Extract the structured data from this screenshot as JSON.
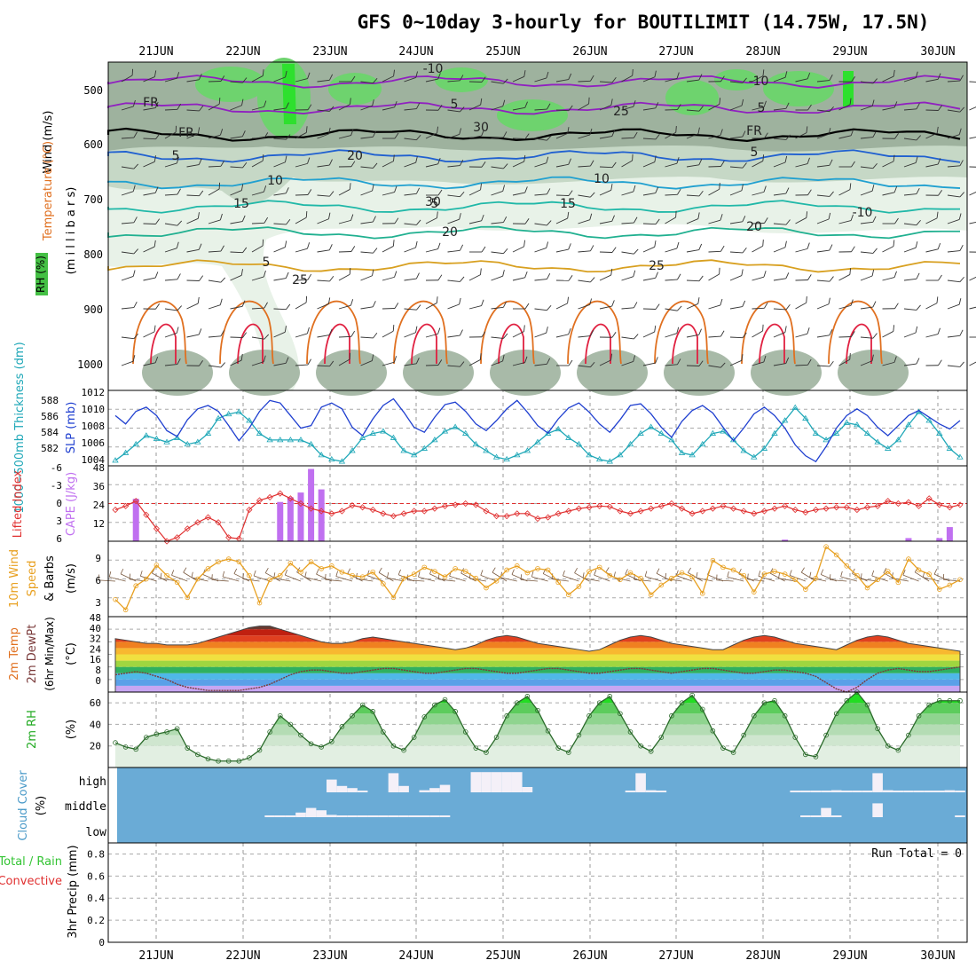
{
  "title": "GFS 0~10day 3-hourly for BOUTILIMIT (14.75W, 17.5N)",
  "date_labels": [
    "21JUN",
    "22JUN",
    "23JUN",
    "24JUN",
    "25JUN",
    "26JUN",
    "27JUN",
    "28JUN",
    "29JUN",
    "30JUN"
  ],
  "colors": {
    "rh": "#44c044",
    "temp": "#8c28c8",
    "wind": "#000000",
    "thickness": "#20a8b8",
    "slp": "#2040d0",
    "lifted": "#e03030",
    "cape": "#c070f0",
    "wind10": "#e8a020",
    "cloud_bg": "#6aabd6",
    "precip_green": "#33c433",
    "precip_red": "#e03030"
  },
  "panels": {
    "upper": {
      "label_wind": "Wind (m/s)",
      "label_temp": "Temperature (°C)",
      "label_rh": "RH (%)",
      "label_pressure": "(m i l l i b a r s)",
      "yticks": [
        "500",
        "600",
        "700",
        "800",
        "900",
        "1000"
      ],
      "contour_labels": [
        "-10",
        "5",
        "FR",
        "5",
        "10",
        "15",
        "20",
        "25",
        "30",
        "-10",
        "5",
        "FR",
        "5",
        "10",
        "15",
        "20",
        "25",
        "30",
        "-10",
        "5",
        "FR",
        "5",
        "20",
        "25"
      ]
    },
    "slp": {
      "label_left": "1000~500mb Thickness (dm)",
      "label_right": "SLP (mb)",
      "thick_ticks": [
        "588",
        "586",
        "584",
        "582"
      ],
      "slp_ticks": [
        "1012",
        "1010",
        "1008",
        "1006",
        "1004"
      ]
    },
    "li": {
      "label_left": "Lifted Index",
      "label_right": "CAPE (J/kg)",
      "li_ticks": [
        "-6",
        "-3",
        "0",
        "3",
        "6"
      ],
      "cape_ticks": [
        "48",
        "36",
        "24",
        "12"
      ]
    },
    "wind10": {
      "label_a": "10m Wind",
      "label_b": "Speed",
      "label_c": "& Barbs",
      "unit": "(m/s)",
      "yticks": [
        "9",
        "6",
        "3"
      ]
    },
    "temp2m": {
      "label_a": "2m Temp",
      "label_b": "2m DewPt",
      "label_c": "(6hr Min/Max)",
      "unit": "(°C)",
      "yticks": [
        "48",
        "40",
        "32",
        "24",
        "16",
        "8",
        "0"
      ]
    },
    "rh2m": {
      "label": "2m RH",
      "unit": "(%)",
      "yticks": [
        "60",
        "40",
        "20"
      ]
    },
    "cloud": {
      "label": "Cloud Cover",
      "unit": "(%)",
      "levels": [
        "high",
        "middle",
        "low"
      ]
    },
    "precip": {
      "label_total": "Total / Rain",
      "label_conv": "Convective",
      "label_axis": "3hr Precip (mm)",
      "run_total": "Run Total = 0",
      "yticks": [
        "0.8",
        "0.6",
        "0.4",
        "0.2",
        "0"
      ]
    }
  },
  "chart_data": [
    {
      "type": "line",
      "title": "SLP and 1000~500mb Thickness",
      "series": [
        {
          "name": "SLP (mb)",
          "values": [
            1010.0,
            1009.0,
            1010.5,
            1011.0,
            1010.0,
            1008.2,
            1007.5,
            1009.5,
            1010.8,
            1011.2,
            1010.5,
            1008.8,
            1007.0,
            1008.5,
            1010.5,
            1011.8,
            1011.5,
            1010.0,
            1008.5,
            1008.8,
            1011.0,
            1011.5,
            1010.8,
            1008.6,
            1007.6,
            1009.6,
            1011.2,
            1012.0,
            1010.4,
            1008.6,
            1008.0,
            1009.8,
            1011.3,
            1011.6,
            1010.5,
            1009.0,
            1008.2,
            1009.4,
            1010.8,
            1011.8,
            1010.4,
            1008.8,
            1007.9,
            1009.6,
            1010.9,
            1011.5,
            1010.4,
            1009.0,
            1008.0,
            1009.5,
            1011.2,
            1011.4,
            1010.2,
            1008.6,
            1007.4,
            1009.3,
            1010.6,
            1011.2,
            1010.3,
            1008.6,
            1007.0,
            1008.5,
            1010.2,
            1011.0,
            1010.0,
            1008.5,
            1006.5,
            1005.2,
            1004.5,
            1006.3,
            1008.5,
            1010.0,
            1010.8,
            1010.0,
            1008.6,
            1007.6,
            1008.8,
            1010.0,
            1010.6,
            1009.8,
            1009.0,
            1008.4,
            1009.4
          ]
        },
        {
          "name": "1000~500mb Thickness (dm)",
          "values": [
            582.5,
            583.2,
            584.0,
            584.8,
            584.5,
            584.2,
            584.6,
            584.0,
            584.2,
            585.0,
            586.4,
            586.8,
            587.0,
            586.2,
            585.0,
            584.4,
            584.4,
            584.4,
            584.4,
            584.0,
            583.0,
            582.6,
            582.4,
            583.4,
            584.6,
            585.0,
            585.2,
            584.6,
            583.4,
            583.0,
            583.6,
            584.4,
            585.2,
            585.6,
            585.0,
            584.0,
            583.4,
            582.8,
            582.6,
            583.0,
            583.4,
            584.2,
            585.0,
            585.4,
            584.6,
            584.0,
            583.0,
            582.6,
            582.4,
            583.0,
            584.0,
            585.0,
            585.6,
            585.0,
            584.4,
            583.2,
            583.0,
            584.0,
            585.0,
            585.2,
            584.4,
            583.4,
            582.8,
            583.6,
            585.0,
            586.2,
            587.4,
            586.4,
            585.0,
            584.4,
            585.0,
            586.0,
            585.8,
            585.0,
            584.2,
            583.6,
            584.4,
            585.8,
            587.0,
            586.2,
            585.0,
            583.6,
            582.8
          ]
        }
      ],
      "y2lim": [
        582,
        589
      ],
      "ylim": [
        1004,
        1013
      ]
    },
    {
      "type": "bar",
      "title": "Lifted Index and CAPE",
      "series": [
        {
          "name": "Lifted Index",
          "values": [
            1.0,
            0.4,
            -0.4,
            1.8,
            4.0,
            6.0,
            5.4,
            4.0,
            3.0,
            2.2,
            3.0,
            5.4,
            5.6,
            1.0,
            -0.5,
            -1.0,
            -1.6,
            -0.8,
            0.0,
            0.8,
            1.2,
            1.6,
            1.2,
            0.3,
            0.6,
            1.0,
            1.6,
            2.0,
            1.6,
            1.2,
            1.2,
            0.8,
            0.4,
            0.2,
            0.0,
            0.2,
            1.2,
            2.0,
            2.0,
            1.6,
            1.6,
            2.4,
            2.2,
            1.6,
            1.2,
            0.8,
            0.6,
            0.4,
            0.5,
            1.2,
            1.6,
            1.2,
            0.8,
            0.4,
            0.0,
            0.8,
            1.6,
            1.2,
            0.8,
            0.4,
            0.8,
            1.2,
            1.6,
            1.2,
            0.8,
            0.4,
            1.0,
            1.4,
            1.0,
            0.8,
            0.6,
            0.6,
            1.0,
            0.6,
            0.4,
            -0.4,
            0.0,
            -0.2,
            0.4,
            -0.8,
            0.2,
            0.6,
            0.2
          ]
        },
        {
          "name": "CAPE (J/kg)",
          "values": [
            0,
            0,
            27,
            0,
            0,
            0,
            0,
            0,
            0,
            0,
            0,
            0,
            0,
            0,
            0,
            0,
            25,
            28,
            31,
            46,
            33,
            0,
            0,
            0,
            0,
            0,
            0,
            0,
            0,
            0,
            0,
            0,
            0,
            0,
            0,
            0,
            0,
            0,
            0,
            0,
            0,
            0,
            0,
            0,
            0,
            0,
            0,
            0,
            0,
            0,
            0,
            0,
            0,
            0,
            0,
            0,
            0,
            0,
            0,
            0,
            0,
            0,
            0,
            0,
            0,
            1,
            0,
            0,
            0,
            0,
            0,
            0,
            0,
            0,
            0,
            0,
            0,
            2,
            0,
            0,
            2,
            9,
            0
          ]
        }
      ],
      "ylim": [
        6,
        -6
      ],
      "y2lim": [
        0,
        48
      ]
    },
    {
      "type": "line",
      "title": "10m Wind Speed",
      "series": [
        {
          "name": "10m Wind Speed (m/s)",
          "values": [
            2.5,
            1.0,
            4.5,
            5.5,
            7.5,
            6.0,
            5.0,
            2.8,
            5.5,
            7.0,
            8.0,
            8.4,
            8.0,
            6.0,
            2.0,
            5.4,
            6.0,
            7.8,
            6.5,
            8.0,
            7.0,
            7.4,
            6.5,
            6.0,
            5.8,
            6.5,
            4.8,
            2.8,
            5.6,
            6.2,
            7.2,
            6.6,
            5.8,
            7.0,
            6.6,
            5.6,
            4.2,
            5.2,
            6.8,
            7.4,
            6.4,
            7.0,
            6.8,
            5.0,
            3.2,
            4.4,
            6.6,
            7.2,
            6.0,
            5.4,
            6.4,
            5.6,
            3.2,
            4.6,
            5.6,
            6.4,
            5.8,
            3.4,
            8.2,
            7.2,
            6.8,
            6.0,
            3.6,
            6.2,
            6.6,
            6.2,
            5.4,
            4.0,
            5.6,
            10.2,
            9.0,
            7.4,
            6.0,
            4.2,
            5.4,
            6.6,
            5.0,
            8.4,
            6.8,
            6.2,
            4.0,
            4.6,
            5.4
          ]
        }
      ],
      "ylim": [
        0,
        11
      ]
    },
    {
      "type": "line",
      "title": "2m Temp and 2m DewPt",
      "series": [
        {
          "name": "2m Temp (°C)",
          "values": [
            34,
            33,
            32,
            31,
            31,
            30,
            30,
            30,
            31,
            33,
            35,
            37,
            39,
            41,
            42,
            42,
            40,
            38,
            36,
            34,
            32,
            31,
            31,
            32,
            34,
            35,
            34,
            33,
            32,
            31,
            30,
            29,
            28,
            27,
            28,
            30,
            33,
            35,
            36,
            35,
            33,
            31,
            30,
            29,
            28,
            27,
            26,
            27,
            30,
            33,
            35,
            36,
            35,
            33,
            31,
            30,
            29,
            28,
            27,
            27,
            30,
            33,
            35,
            36,
            35,
            33,
            31,
            30,
            29,
            28,
            27,
            30,
            33,
            35,
            36,
            35,
            33,
            31,
            30,
            29,
            28,
            27,
            26
          ]
        },
        {
          "name": "2m DewPt (°C)",
          "values": [
            11,
            12,
            13,
            12,
            10,
            8,
            5,
            3,
            2,
            1,
            1,
            1,
            1,
            2,
            3,
            5,
            8,
            11,
            13,
            14,
            14,
            13,
            12,
            12,
            13,
            14,
            15,
            15,
            14,
            13,
            12,
            12,
            13,
            14,
            15,
            15,
            14,
            13,
            12,
            12,
            13,
            14,
            15,
            15,
            14,
            13,
            12,
            12,
            13,
            14,
            15,
            15,
            14,
            13,
            12,
            13,
            14,
            15,
            15,
            14,
            13,
            12,
            12,
            13,
            14,
            14,
            13,
            12,
            10,
            6,
            2,
            0,
            3,
            8,
            12,
            14,
            15,
            14,
            13,
            13,
            14,
            15,
            16
          ]
        }
      ],
      "ylim": [
        0,
        48
      ]
    },
    {
      "type": "area",
      "title": "2m RH",
      "series": [
        {
          "name": "2m RH (%)",
          "values": [
            23,
            19,
            17,
            28,
            31,
            33,
            36,
            18,
            12,
            8,
            6,
            6,
            6,
            9,
            16,
            33,
            48,
            40,
            30,
            22,
            19,
            24,
            38,
            48,
            58,
            52,
            33,
            20,
            16,
            28,
            47,
            58,
            63,
            52,
            33,
            18,
            14,
            28,
            48,
            60,
            66,
            53,
            34,
            18,
            14,
            30,
            48,
            60,
            66,
            50,
            33,
            20,
            15,
            28,
            48,
            60,
            67,
            54,
            34,
            18,
            14,
            30,
            48,
            60,
            62,
            48,
            28,
            12,
            10,
            30,
            50,
            62,
            70,
            58,
            36,
            20,
            16,
            30,
            48,
            58,
            62,
            62,
            62
          ]
        }
      ],
      "ylim": [
        0,
        70
      ]
    },
    {
      "type": "heatmap",
      "title": "Cloud Cover",
      "rows": [
        "high",
        "middle",
        "low"
      ],
      "series": [
        {
          "name": "high",
          "values": [
            0,
            0,
            0,
            0,
            0,
            0,
            0,
            0,
            0,
            0,
            0,
            0,
            0,
            0,
            0,
            0,
            0,
            0,
            0,
            0,
            0,
            60,
            30,
            20,
            5,
            0,
            0,
            90,
            30,
            0,
            10,
            20,
            35,
            0,
            0,
            95,
            95,
            95,
            95,
            95,
            25,
            0,
            0,
            0,
            0,
            0,
            0,
            0,
            0,
            0,
            5,
            90,
            10,
            5,
            0,
            0,
            0,
            0,
            0,
            0,
            0,
            0,
            0,
            0,
            0,
            0,
            5,
            5,
            5,
            5,
            10,
            5,
            5,
            5,
            90,
            10,
            5,
            5,
            5,
            5,
            5,
            10,
            5
          ]
        },
        {
          "name": "middle",
          "values": [
            0,
            0,
            0,
            0,
            0,
            0,
            0,
            0,
            0,
            0,
            0,
            0,
            0,
            0,
            0,
            2,
            2,
            5,
            20,
            40,
            30,
            10,
            2,
            2,
            2,
            2,
            2,
            2,
            2,
            2,
            2,
            2,
            2,
            0,
            0,
            0,
            0,
            0,
            0,
            0,
            0,
            0,
            0,
            0,
            0,
            0,
            0,
            0,
            0,
            0,
            0,
            0,
            0,
            0,
            0,
            0,
            0,
            0,
            0,
            0,
            0,
            0,
            0,
            0,
            0,
            0,
            0,
            2,
            2,
            40,
            5,
            0,
            0,
            0,
            60,
            0,
            0,
            0,
            0,
            0,
            0,
            0,
            2
          ]
        },
        {
          "name": "low",
          "values": [
            0,
            0,
            0,
            0,
            0,
            0,
            0,
            0,
            0,
            0,
            0,
            0,
            0,
            0,
            0,
            0,
            0,
            0,
            0,
            0,
            0,
            0,
            0,
            0,
            0,
            0,
            0,
            0,
            0,
            0,
            0,
            0,
            0,
            0,
            0,
            0,
            0,
            0,
            0,
            0,
            0,
            0,
            0,
            0,
            0,
            0,
            0,
            0,
            0,
            0,
            0,
            0,
            0,
            0,
            0,
            0,
            0,
            0,
            0,
            0,
            0,
            0,
            0,
            0,
            0,
            0,
            0,
            0,
            0,
            0,
            0,
            0,
            0,
            0,
            0,
            0,
            0,
            0,
            0,
            0,
            0,
            0,
            0
          ]
        }
      ]
    },
    {
      "type": "bar",
      "title": "3hr Precip (mm)",
      "series": [
        {
          "name": "3hr Precip (mm)",
          "values": []
        }
      ],
      "ylim": [
        0,
        0.9
      ]
    }
  ]
}
